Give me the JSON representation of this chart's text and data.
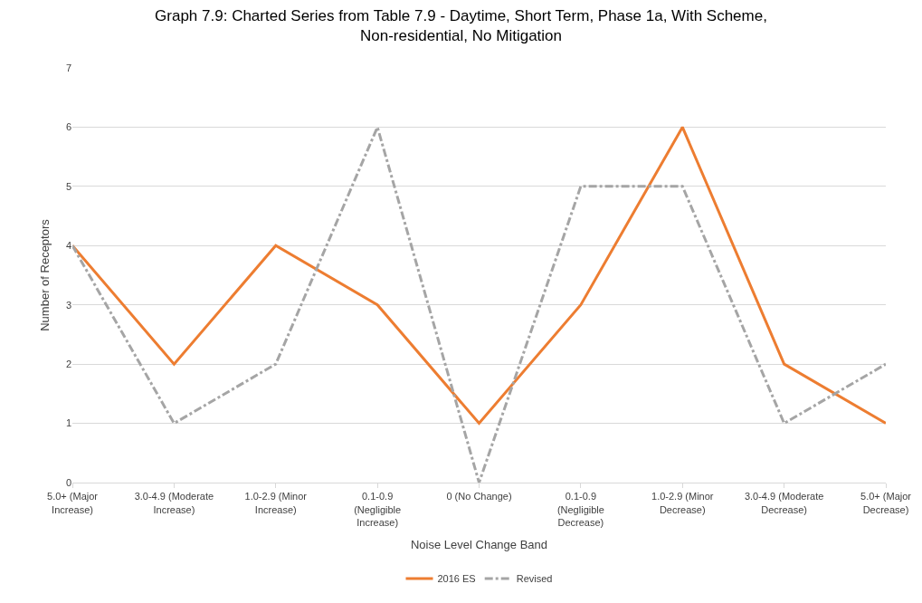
{
  "chart_data": {
    "type": "line",
    "title": "Graph 7.9: Charted Series from Table 7.9 - Daytime, Short Term, Phase 1a, With Scheme, Non-residential, No Mitigation",
    "xlabel": "Noise Level Change Band",
    "ylabel": "Number of Receptors",
    "categories": [
      "5.0+ (Major Increase)",
      "3.0-4.9 (Moderate Increase)",
      "1.0-2.9 (Minor Increase)",
      "0.1-0.9 (Negligible Increase)",
      "0 (No Change)",
      "0.1-0.9 (Negligible Decrease)",
      "1.0-2.9 (Minor Decrease)",
      "3.0-4.9 (Moderate Decrease)",
      "5.0+ (Major Decrease)"
    ],
    "series": [
      {
        "name": "2016 ES",
        "color": "#ed7d31",
        "values": [
          4,
          2,
          4,
          3,
          1,
          3,
          6,
          2,
          1
        ],
        "line_style": "solid"
      },
      {
        "name": "Revised",
        "color": "#a5a5a5",
        "values": [
          4,
          1,
          2,
          6,
          0,
          5,
          5,
          1,
          2
        ],
        "line_style": "dashdot"
      }
    ],
    "ylim": [
      0,
      7
    ],
    "yticks": [
      0,
      1,
      2,
      3,
      4,
      5,
      6,
      7
    ],
    "grid": "y",
    "legend": "bottom",
    "marker": "none"
  }
}
